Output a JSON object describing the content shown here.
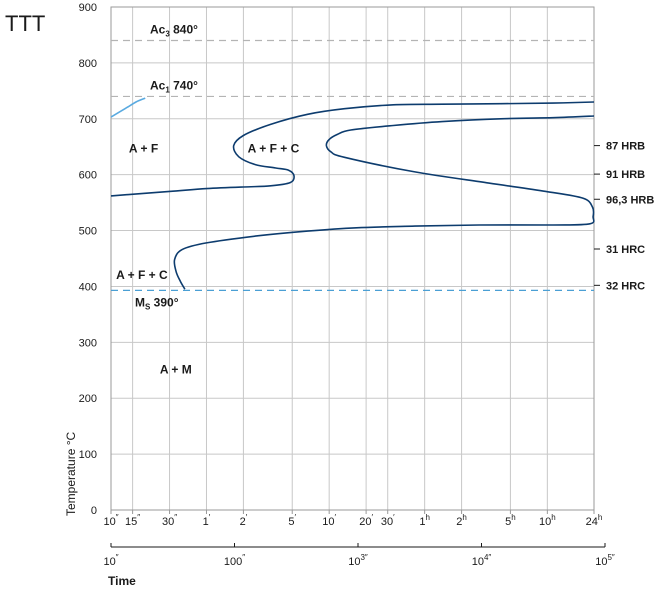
{
  "chart_data": {
    "type": "line",
    "title": "TTT",
    "ylabel": "Temperature °C",
    "xlabel": "Time",
    "ylim": [
      0,
      900
    ],
    "y_ticks": [
      0,
      100,
      200,
      300,
      400,
      500,
      600,
      700,
      800,
      900
    ],
    "x_scale": "log",
    "xlim_seconds": [
      10,
      86400
    ],
    "time_ticks": [
      {
        "label": "10",
        "sup": "″",
        "seconds": 10
      },
      {
        "label": "15",
        "sup": "″",
        "seconds": 15
      },
      {
        "label": "30",
        "sup": "″",
        "seconds": 30
      },
      {
        "label": "1",
        "sup": "′",
        "seconds": 60
      },
      {
        "label": "2",
        "sup": "′",
        "seconds": 120
      },
      {
        "label": "5",
        "sup": "′",
        "seconds": 300
      },
      {
        "label": "10",
        "sup": "′",
        "seconds": 600
      },
      {
        "label": "20",
        "sup": "′",
        "seconds": 1200
      },
      {
        "label": "30",
        "sup": "′",
        "seconds": 1800
      },
      {
        "label": "1",
        "sup": "h",
        "seconds": 3600
      },
      {
        "label": "2",
        "sup": "h",
        "seconds": 7200
      },
      {
        "label": "5",
        "sup": "h",
        "seconds": 18000
      },
      {
        "label": "10",
        "sup": "h",
        "seconds": 36000
      },
      {
        "label": "24",
        "sup": "h",
        "seconds": 86400
      }
    ],
    "seconds_axis_ticks": [
      {
        "label": "10",
        "sup": "″",
        "seconds": 10
      },
      {
        "label": "100",
        "sup": "″",
        "seconds": 100
      },
      {
        "label": "10",
        "sup": "3″",
        "seconds": 1000
      },
      {
        "label": "10",
        "sup": "4″",
        "seconds": 10000
      },
      {
        "label": "10",
        "sup": "5″",
        "seconds": 100000
      }
    ],
    "reference_lines": [
      {
        "name": "Ac3",
        "label_main": "Ac",
        "label_sub": "3",
        "label_rest": " 840°",
        "temperature": 840,
        "color": "#b4b4b4",
        "style": "dashed"
      },
      {
        "name": "Ac1",
        "label_main": "Ac",
        "label_sub": "1",
        "label_rest": " 740°",
        "temperature": 740,
        "color": "#b4b4b4",
        "style": "dashed"
      },
      {
        "name": "Ms",
        "label_main": "M",
        "label_sub": "S",
        "label_rest": " 390°",
        "temperature": 393,
        "color": "#4a9fd4",
        "style": "dashed"
      }
    ],
    "series": [
      {
        "color": "#0d3c6e",
        "points": [
          [
            86400,
            730
          ],
          [
            40000,
            728
          ],
          [
            15000,
            727
          ],
          [
            5000,
            726
          ],
          [
            2000,
            725
          ],
          [
            800,
            718
          ],
          [
            400,
            708
          ],
          [
            200,
            690
          ],
          [
            120,
            670
          ],
          [
            100,
            652
          ],
          [
            110,
            632
          ],
          [
            150,
            618
          ],
          [
            220,
            612
          ],
          [
            280,
            608
          ],
          [
            310,
            598
          ],
          [
            290,
            586
          ],
          [
            200,
            580
          ],
          [
            120,
            578
          ],
          [
            60,
            575
          ],
          [
            30,
            570
          ],
          [
            10,
            562
          ]
        ]
      },
      {
        "color": "#0d3c6e",
        "points": [
          [
            86400,
            705
          ],
          [
            40000,
            702
          ],
          [
            15000,
            700
          ],
          [
            5000,
            695
          ],
          [
            2000,
            688
          ],
          [
            900,
            680
          ],
          [
            700,
            672
          ],
          [
            600,
            663
          ],
          [
            570,
            652
          ],
          [
            620,
            641
          ],
          [
            800,
            631
          ],
          [
            3000,
            605
          ],
          [
            12000,
            585
          ],
          [
            35000,
            570
          ],
          [
            70000,
            558
          ],
          [
            84000,
            542
          ],
          [
            85000,
            525
          ],
          [
            80000,
            512
          ],
          [
            40000,
            510
          ],
          [
            10000,
            510
          ],
          [
            3000,
            508
          ],
          [
            1000,
            505
          ],
          [
            400,
            499
          ],
          [
            150,
            490
          ],
          [
            60,
            478
          ],
          [
            38,
            466
          ],
          [
            33,
            448
          ],
          [
            34,
            426
          ],
          [
            37,
            408
          ],
          [
            40,
            395
          ]
        ]
      },
      {
        "color": "#5aaae0",
        "points": [
          [
            10,
            703
          ],
          [
            13,
            718
          ],
          [
            16,
            730
          ],
          [
            19,
            737
          ]
        ]
      }
    ],
    "annotations": [
      {
        "text": "A + F",
        "x_seconds": 14,
        "temperature": 640
      },
      {
        "text": "A + F + C",
        "x_seconds": 130,
        "temperature": 640
      },
      {
        "text": "A + F + C",
        "x_seconds": 11,
        "temperature": 413
      },
      {
        "text": "A + M",
        "x_seconds": 25,
        "temperature": 244
      }
    ],
    "hardness_labels": [
      {
        "text": "87 HRB",
        "temperature": 652
      },
      {
        "text": "91 HRB",
        "temperature": 601
      },
      {
        "text": "96,3 HRB",
        "temperature": 556
      },
      {
        "text": "31 HRC",
        "temperature": 467
      },
      {
        "text": "32 HRC",
        "temperature": 402
      }
    ],
    "grid": true
  }
}
